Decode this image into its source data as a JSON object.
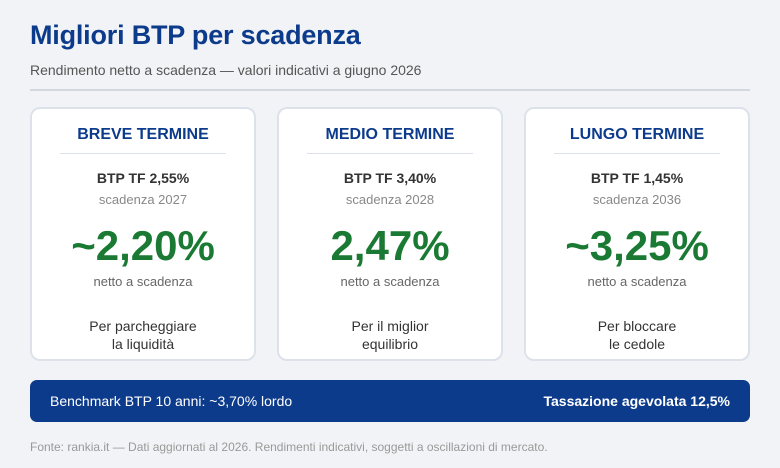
{
  "header": {
    "title": "Migliori BTP per scadenza",
    "subtitle": "Rendimento netto a scadenza — valori indicativi a giugno 2026"
  },
  "cards": [
    {
      "title": "BREVE TERMINE",
      "bond": "BTP TF 2,55%",
      "maturity": "scadenza 2027",
      "rate": "~2,20%",
      "rate_note": "netto a scadenza",
      "purpose_line1": "Per parcheggiare",
      "purpose_line2": "la liquidità"
    },
    {
      "title": "MEDIO TERMINE",
      "bond": "BTP TF 3,40%",
      "maturity": "scadenza 2028",
      "rate": "2,47%",
      "rate_note": "netto a scadenza",
      "purpose_line1": "Per il miglior",
      "purpose_line2": "equilibrio"
    },
    {
      "title": "LUNGO TERMINE",
      "bond": "BTP TF 1,45%",
      "maturity": "scadenza 2036",
      "rate": "~3,25%",
      "rate_note": "netto a scadenza",
      "purpose_line1": "Per bloccare",
      "purpose_line2": "le cedole"
    }
  ],
  "banner": {
    "left": "Benchmark BTP 10 anni: ~3,70% lordo",
    "right": "Tassazione agevolata 12,5%"
  },
  "footer": "Fonte: rankia.it — Dati aggiornati al 2026. Rendimenti indicativi, soggetti a oscillazioni di mercato.",
  "colors": {
    "accent": "#0d3b8c",
    "rate_green": "#1a7a33",
    "background": "#f1f3f6"
  }
}
